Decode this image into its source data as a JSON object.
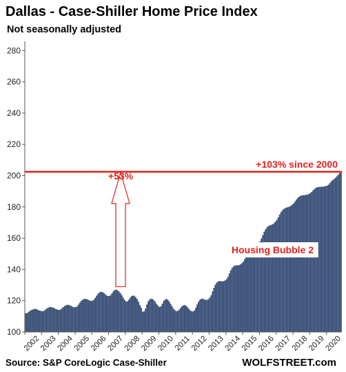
{
  "title": "Dallas - Case-Shiller Home Price Index",
  "subtitle": "Not seasonally adjusted",
  "source": "Source: S&P CoreLogic Case-Shiller",
  "brand": "WOLFSTREET.com",
  "colors": {
    "bar": "#1f3864",
    "bar_edge": "#5878a8",
    "annotation": "#e0201c",
    "axis": "#555555"
  },
  "annotations": {
    "line_label": "+103% since 2000",
    "arrow_label": "+53%",
    "bubble_label": "Housing Bubble 2"
  },
  "chart_data": {
    "type": "bar",
    "title": "Dallas - Case-Shiller Home Price Index",
    "subtitle": "Not seasonally adjusted",
    "xlabel": "",
    "ylabel": "",
    "ylim": [
      100,
      285
    ],
    "yticks": [
      100,
      120,
      140,
      160,
      180,
      200,
      220,
      240,
      260,
      280
    ],
    "xtick_labels": [
      "2002",
      "2003",
      "2004",
      "2005",
      "2006",
      "2007",
      "2008",
      "2009",
      "2010",
      "2011",
      "2012",
      "2013",
      "2014",
      "2015",
      "2016",
      "2017",
      "2018",
      "2019",
      "2020"
    ],
    "grid": false,
    "reference_line": {
      "value": 202.5,
      "label": "+103% since 2000"
    },
    "yearly": [
      {
        "year": 2002,
        "months": [
          112.0,
          112.0,
          112.6,
          113.3,
          113.9,
          114.3,
          114.6,
          114.8,
          114.6,
          114.2,
          113.7,
          113.5
        ]
      },
      {
        "year": 2003,
        "months": [
          113.3,
          113.4,
          114.0,
          114.8,
          115.4,
          115.8,
          116.0,
          115.8,
          115.6,
          115.1,
          114.6,
          114.3
        ]
      },
      {
        "year": 2004,
        "months": [
          114.1,
          114.3,
          115.0,
          115.9,
          116.6,
          117.1,
          117.4,
          117.3,
          117.0,
          116.6,
          116.0,
          115.8
        ]
      },
      {
        "year": 2005,
        "months": [
          115.9,
          116.4,
          117.5,
          118.8,
          119.9,
          120.6,
          121.1,
          121.2,
          121.0,
          120.6,
          120.1,
          119.9
        ]
      },
      {
        "year": 2006,
        "months": [
          120.0,
          120.6,
          121.8,
          123.2,
          124.5,
          125.3,
          125.7,
          125.6,
          125.1,
          124.4,
          123.5,
          123.0
        ]
      },
      {
        "year": 2007,
        "months": [
          123.0,
          123.6,
          124.8,
          126.0,
          126.9,
          127.1,
          126.7,
          125.9,
          124.9,
          123.6,
          122.0,
          120.6
        ]
      },
      {
        "year": 2008,
        "months": [
          119.5,
          119.6,
          120.6,
          121.9,
          122.9,
          123.3,
          123.1,
          122.3,
          121.1,
          119.4,
          117.3,
          115.5
        ]
      },
      {
        "year": 2009,
        "months": [
          113.0,
          113.2,
          115.0,
          117.6,
          119.6,
          120.8,
          121.3,
          121.1,
          120.4,
          119.3,
          117.9,
          116.8
        ]
      },
      {
        "year": 2010,
        "months": [
          116.0,
          116.4,
          118.0,
          119.8,
          120.8,
          121.1,
          120.6,
          119.5,
          118.0,
          116.5,
          115.0,
          114.0
        ]
      },
      {
        "year": 2011,
        "months": [
          113.4,
          113.5,
          114.2,
          115.3,
          116.4,
          117.0,
          117.2,
          116.8,
          116.0,
          114.9,
          113.8,
          113.3
        ]
      },
      {
        "year": 2012,
        "months": [
          113.1,
          113.8,
          115.5,
          117.6,
          119.4,
          120.6,
          121.3,
          121.3,
          120.9,
          120.6,
          120.5,
          121.0
        ]
      },
      {
        "year": 2013,
        "months": [
          122.0,
          123.6,
          126.0,
          128.3,
          130.3,
          131.6,
          132.3,
          132.6,
          132.5,
          132.4,
          132.5,
          133.0
        ]
      },
      {
        "year": 2014,
        "months": [
          133.8,
          135.3,
          137.5,
          139.5,
          141.0,
          142.0,
          142.5,
          142.7,
          142.6,
          142.8,
          143.3,
          144.0
        ]
      },
      {
        "year": 2015,
        "months": [
          145.0,
          146.6,
          148.7,
          150.8,
          152.3,
          153.4,
          154.0,
          154.4,
          154.6,
          155.0,
          155.8,
          156.8
        ]
      },
      {
        "year": 2016,
        "months": [
          158.0,
          159.8,
          162.0,
          164.2,
          165.8,
          167.0,
          167.8,
          168.2,
          168.5,
          168.9,
          169.6,
          170.6
        ]
      },
      {
        "year": 2017,
        "months": [
          171.7,
          173.3,
          175.1,
          176.7,
          177.9,
          178.7,
          179.3,
          179.6,
          179.9,
          180.2,
          180.7,
          181.4
        ]
      },
      {
        "year": 2018,
        "months": [
          182.2,
          183.4,
          184.7,
          185.8,
          186.6,
          187.1,
          187.4,
          187.5,
          187.6,
          187.7,
          187.9,
          188.3
        ]
      },
      {
        "year": 2019,
        "months": [
          188.8,
          189.6,
          190.6,
          191.5,
          192.2,
          192.6,
          192.8,
          192.9,
          192.9,
          193.0,
          193.1,
          193.3
        ]
      },
      {
        "year": 2020,
        "months": [
          193.6,
          194.2,
          195.3,
          196.4,
          197.2,
          197.9,
          198.7,
          199.6,
          200.6,
          201.7,
          202.5
        ]
      }
    ]
  }
}
